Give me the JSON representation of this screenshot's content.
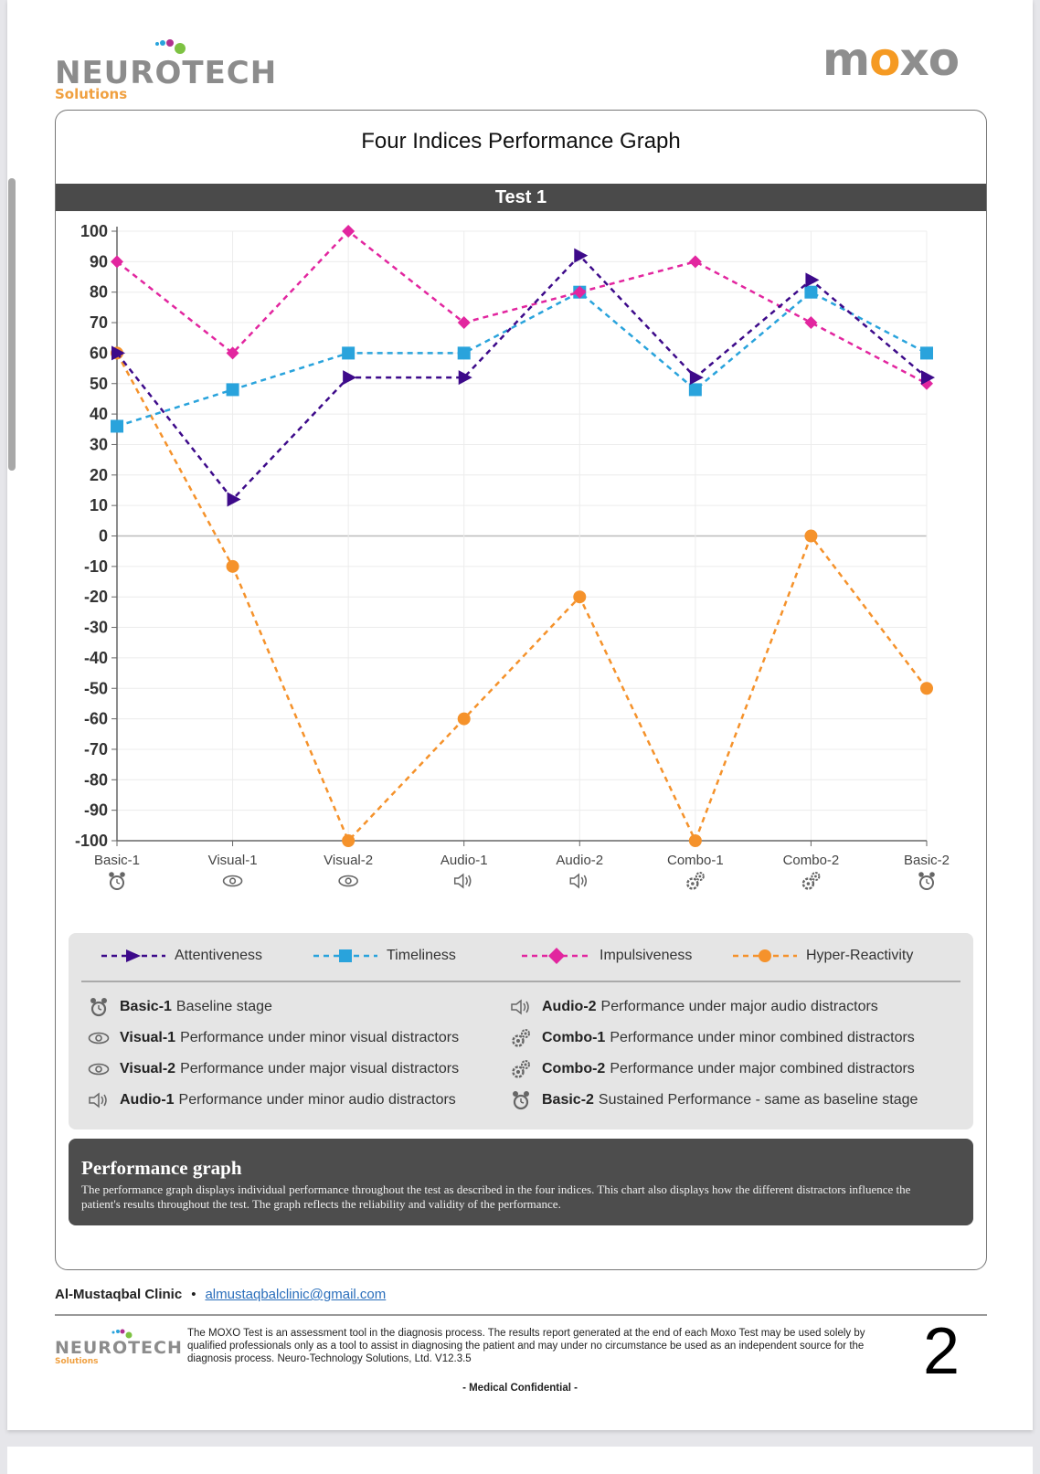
{
  "header": {
    "left_logo": {
      "word": "NEUROTECH",
      "sub": "Solutions"
    },
    "right_logo": {
      "pre": "m",
      "mid": "o",
      "post": "xo"
    }
  },
  "main": {
    "title": "Four Indices Performance Graph",
    "test_label": "Test 1"
  },
  "colors": {
    "attentiveness": "#3d0a8a",
    "timeliness": "#29a3dc",
    "impulsiveness": "#e2269f",
    "hyper_reactivity": "#f5922b",
    "dark_bar": "#4a4a4a",
    "legend_bg": "#e5e5e5"
  },
  "chart_data": {
    "type": "line",
    "title": "Four Indices Performance Graph",
    "subtitle": "Test 1",
    "xlabel": "",
    "ylabel": "",
    "categories": [
      "Basic-1",
      "Visual-1",
      "Visual-2",
      "Audio-1",
      "Audio-2",
      "Combo-1",
      "Combo-2",
      "Basic-2"
    ],
    "category_icons": [
      "alarm-clock-icon",
      "eye-icon",
      "eye-icon",
      "speaker-icon",
      "speaker-icon",
      "gears-icon",
      "gears-icon",
      "alarm-clock-icon"
    ],
    "ylim": [
      -100,
      100
    ],
    "yticks": [
      100,
      90,
      80,
      70,
      60,
      50,
      40,
      30,
      20,
      10,
      0,
      -10,
      -20,
      -30,
      -40,
      -50,
      -60,
      -70,
      -80,
      -90,
      -100
    ],
    "ytick_labels": [
      "100",
      "90",
      "80",
      "70",
      "60",
      "50",
      "40",
      "30",
      "20",
      "10",
      "0",
      "-10",
      "-20",
      "-30",
      "-40",
      "-50",
      "-60",
      "-70",
      "-80",
      "-90",
      "-100"
    ],
    "grid": true,
    "line_style": "dashed",
    "legend_position": "bottom",
    "series": [
      {
        "name": "Attentiveness",
        "marker": "triangle",
        "color": "#3d0a8a",
        "values": [
          60,
          12,
          52,
          52,
          92,
          52,
          84,
          52
        ]
      },
      {
        "name": "Timeliness",
        "marker": "square",
        "color": "#29a3dc",
        "values": [
          36,
          48,
          60,
          60,
          80,
          48,
          80,
          60
        ]
      },
      {
        "name": "Impulsiveness",
        "marker": "diamond",
        "color": "#e2269f",
        "values": [
          90,
          60,
          100,
          70,
          80,
          90,
          70,
          50
        ]
      },
      {
        "name": "Hyper-Reactivity",
        "marker": "circle",
        "color": "#f5922b",
        "values": [
          60,
          -10,
          -100,
          -60,
          -20,
          -100,
          0,
          -50
        ]
      }
    ]
  },
  "legend": {
    "series": [
      "Attentiveness",
      "Timeliness",
      "Impulsiveness",
      "Hyper-Reactivity"
    ],
    "descriptions": [
      {
        "icon": "alarm-clock-icon",
        "name": "Basic-1",
        "text": "Baseline stage"
      },
      {
        "icon": "eye-icon",
        "name": "Visual-1",
        "text": "Performance under minor visual distractors"
      },
      {
        "icon": "eye-icon",
        "name": "Visual-2",
        "text": "Performance under major visual distractors"
      },
      {
        "icon": "speaker-icon",
        "name": "Audio-1",
        "text": "Performance under minor audio distractors"
      },
      {
        "icon": "speaker-icon",
        "name": "Audio-2",
        "text": "Performance under major audio distractors"
      },
      {
        "icon": "gears-icon",
        "name": "Combo-1",
        "text": "Performance under minor combined distractors"
      },
      {
        "icon": "gears-icon",
        "name": "Combo-2",
        "text": "Performance under major combined distractors"
      },
      {
        "icon": "alarm-clock-icon",
        "name": "Basic-2",
        "text": "Sustained Performance - same as baseline stage"
      }
    ]
  },
  "performance_box": {
    "title": "Performance graph",
    "text": "The performance graph displays individual performance throughout the test as described in the four indices. This chart also displays how the different distractors influence the patient's results throughout the test. The graph reflects the reliability and validity of the performance."
  },
  "footer": {
    "clinic": "Al-Mustaqbal Clinic",
    "bullet": "•",
    "email": "almustaqbalclinic@gmail.com",
    "logo_word": "NEUROTECH",
    "logo_sub": "Solutions",
    "disclaimer": "The MOXO Test is an assessment tool in the diagnosis process. The results report generated at the end of each Moxo Test may be used solely by qualified professionals only as a tool to assist in diagnosing the patient and may under no circumstance be used as an independent source for the diagnosis process. Neuro-Technology Solutions, Ltd. V12.3.5",
    "page_number": "2",
    "confidential": "- Medical Confidential -"
  }
}
